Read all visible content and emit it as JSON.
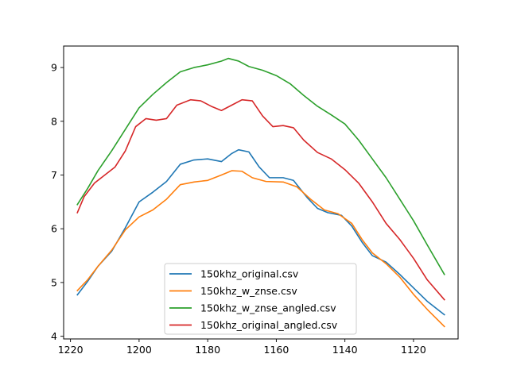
{
  "chart_data": {
    "type": "line",
    "title": "",
    "xlabel": "",
    "ylabel": "",
    "xlim": [
      1222,
      1107
    ],
    "ylim": [
      3.95,
      9.4
    ],
    "x_inverted": true,
    "grid": false,
    "legend_position": "lower center",
    "x_ticks": [
      1220,
      1200,
      1180,
      1160,
      1140,
      1120
    ],
    "y_ticks": [
      4,
      5,
      6,
      7,
      8,
      9
    ],
    "series": [
      {
        "name": "150khz_original.csv",
        "color": "#1f77b4",
        "points": [
          [
            1218,
            4.77
          ],
          [
            1215,
            5.02
          ],
          [
            1212,
            5.3
          ],
          [
            1208,
            5.58
          ],
          [
            1204,
            6.02
          ],
          [
            1200,
            6.5
          ],
          [
            1196,
            6.68
          ],
          [
            1192,
            6.88
          ],
          [
            1188,
            7.2
          ],
          [
            1184,
            7.28
          ],
          [
            1180,
            7.3
          ],
          [
            1176,
            7.25
          ],
          [
            1173,
            7.4
          ],
          [
            1171,
            7.47
          ],
          [
            1168,
            7.43
          ],
          [
            1165,
            7.15
          ],
          [
            1162,
            6.95
          ],
          [
            1158,
            6.95
          ],
          [
            1155,
            6.9
          ],
          [
            1151,
            6.58
          ],
          [
            1148,
            6.38
          ],
          [
            1145,
            6.3
          ],
          [
            1141,
            6.25
          ],
          [
            1138,
            6.05
          ],
          [
            1135,
            5.75
          ],
          [
            1132,
            5.5
          ],
          [
            1128,
            5.38
          ],
          [
            1124,
            5.15
          ],
          [
            1120,
            4.9
          ],
          [
            1116,
            4.65
          ],
          [
            1111,
            4.4
          ]
        ]
      },
      {
        "name": "150khz_w_znse.csv",
        "color": "#ff7f0e",
        "points": [
          [
            1218,
            4.85
          ],
          [
            1215,
            5.05
          ],
          [
            1212,
            5.3
          ],
          [
            1208,
            5.6
          ],
          [
            1204,
            5.98
          ],
          [
            1200,
            6.22
          ],
          [
            1196,
            6.35
          ],
          [
            1192,
            6.55
          ],
          [
            1188,
            6.82
          ],
          [
            1184,
            6.87
          ],
          [
            1180,
            6.9
          ],
          [
            1176,
            7.0
          ],
          [
            1173,
            7.08
          ],
          [
            1170,
            7.07
          ],
          [
            1167,
            6.95
          ],
          [
            1163,
            6.88
          ],
          [
            1158,
            6.87
          ],
          [
            1154,
            6.78
          ],
          [
            1150,
            6.55
          ],
          [
            1146,
            6.35
          ],
          [
            1142,
            6.28
          ],
          [
            1138,
            6.1
          ],
          [
            1135,
            5.8
          ],
          [
            1132,
            5.55
          ],
          [
            1128,
            5.35
          ],
          [
            1124,
            5.1
          ],
          [
            1120,
            4.78
          ],
          [
            1116,
            4.5
          ],
          [
            1111,
            4.18
          ]
        ]
      },
      {
        "name": "150khz_w_znse_angled.csv",
        "color": "#2ca02c",
        "points": [
          [
            1218,
            6.45
          ],
          [
            1215,
            6.75
          ],
          [
            1212,
            7.08
          ],
          [
            1208,
            7.45
          ],
          [
            1204,
            7.85
          ],
          [
            1200,
            8.25
          ],
          [
            1196,
            8.5
          ],
          [
            1192,
            8.72
          ],
          [
            1188,
            8.92
          ],
          [
            1184,
            9.0
          ],
          [
            1180,
            9.05
          ],
          [
            1176,
            9.12
          ],
          [
            1174,
            9.17
          ],
          [
            1171,
            9.12
          ],
          [
            1168,
            9.02
          ],
          [
            1164,
            8.95
          ],
          [
            1160,
            8.85
          ],
          [
            1156,
            8.7
          ],
          [
            1152,
            8.48
          ],
          [
            1148,
            8.28
          ],
          [
            1144,
            8.12
          ],
          [
            1140,
            7.95
          ],
          [
            1136,
            7.65
          ],
          [
            1132,
            7.3
          ],
          [
            1128,
            6.95
          ],
          [
            1124,
            6.55
          ],
          [
            1120,
            6.15
          ],
          [
            1116,
            5.7
          ],
          [
            1111,
            5.15
          ]
        ]
      },
      {
        "name": "150khz_original_angled.csv",
        "color": "#d62728",
        "points": [
          [
            1218,
            6.3
          ],
          [
            1216,
            6.6
          ],
          [
            1213,
            6.85
          ],
          [
            1210,
            7.0
          ],
          [
            1207,
            7.15
          ],
          [
            1204,
            7.45
          ],
          [
            1201,
            7.9
          ],
          [
            1198,
            8.05
          ],
          [
            1195,
            8.02
          ],
          [
            1192,
            8.05
          ],
          [
            1189,
            8.3
          ],
          [
            1185,
            8.4
          ],
          [
            1182,
            8.38
          ],
          [
            1179,
            8.28
          ],
          [
            1176,
            8.2
          ],
          [
            1173,
            8.3
          ],
          [
            1170,
            8.4
          ],
          [
            1167,
            8.38
          ],
          [
            1164,
            8.1
          ],
          [
            1161,
            7.9
          ],
          [
            1158,
            7.92
          ],
          [
            1155,
            7.88
          ],
          [
            1152,
            7.65
          ],
          [
            1148,
            7.42
          ],
          [
            1144,
            7.3
          ],
          [
            1140,
            7.1
          ],
          [
            1136,
            6.85
          ],
          [
            1132,
            6.5
          ],
          [
            1128,
            6.1
          ],
          [
            1124,
            5.8
          ],
          [
            1120,
            5.45
          ],
          [
            1116,
            5.05
          ],
          [
            1111,
            4.68
          ]
        ]
      }
    ]
  }
}
